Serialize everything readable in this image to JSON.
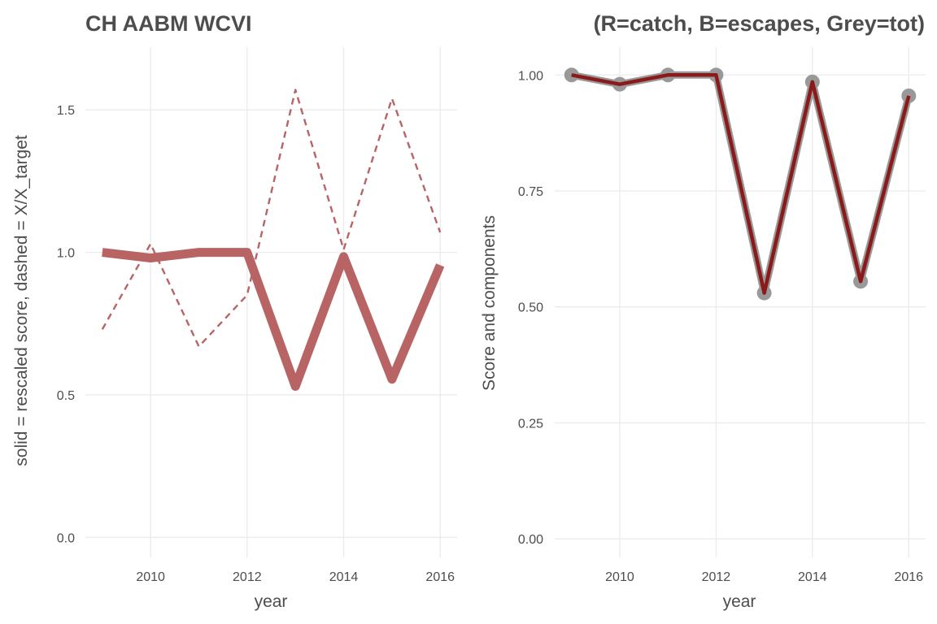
{
  "chart_data": [
    {
      "type": "line",
      "title": "CH AABM WCVI",
      "xlabel": "year",
      "ylabel": "solid = rescaled score, dashed = X/X_target",
      "x": [
        2009,
        2010,
        2011,
        2012,
        2013,
        2014,
        2015,
        2016
      ],
      "xlim": [
        2008.65,
        2016.35
      ],
      "ylim": [
        -0.07,
        1.72
      ],
      "xticks": [
        2010,
        2012,
        2014,
        2016
      ],
      "xtick_labels": [
        "2010",
        "2012",
        "2014",
        "2016"
      ],
      "yticks": [
        0,
        0.5,
        1,
        1.5
      ],
      "ytick_labels": [
        "0.0",
        "0.5",
        "1.0",
        "1.5"
      ],
      "grid": true,
      "series": [
        {
          "values": [
            1.0,
            0.98,
            1.0,
            1.0,
            0.53,
            0.985,
            0.555,
            0.955
          ],
          "color": "#b86464",
          "style": "solid"
        },
        {
          "values": [
            0.73,
            1.03,
            0.67,
            0.85,
            1.57,
            1.01,
            1.54,
            1.07
          ],
          "color": "#b86464",
          "style": "dashed"
        }
      ]
    },
    {
      "type": "line",
      "title": "(R=catch, B=escapes, Grey=tot)",
      "xlabel": "year",
      "ylabel": "Score and components",
      "x": [
        2009,
        2010,
        2011,
        2012,
        2013,
        2014,
        2015,
        2016
      ],
      "xlim": [
        2008.65,
        2016.35
      ],
      "ylim": [
        -0.04,
        1.06
      ],
      "xticks": [
        2010,
        2012,
        2014,
        2016
      ],
      "xtick_labels": [
        "2010",
        "2012",
        "2014",
        "2016"
      ],
      "yticks": [
        0,
        0.25,
        0.5,
        0.75,
        1.0
      ],
      "ytick_labels": [
        "0.00",
        "0.25",
        "0.50",
        "0.75",
        "1.00"
      ],
      "grid": true,
      "series": [
        {
          "values": [
            1.0,
            0.98,
            1.0,
            1.0,
            0.53,
            0.985,
            0.555,
            0.955
          ],
          "color": "#999999",
          "style": "solid-points"
        },
        {
          "values": [
            1.0,
            0.98,
            1.0,
            1.0,
            0.53,
            0.985,
            0.555,
            0.955
          ],
          "color": "#8b1a1a",
          "style": "solid"
        }
      ]
    }
  ]
}
